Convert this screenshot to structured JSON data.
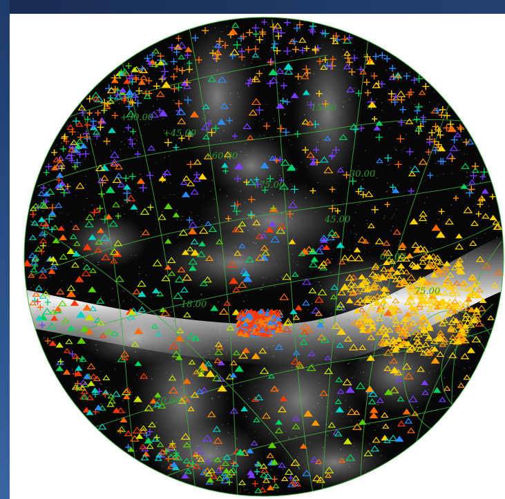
{
  "viewer": {
    "grid_labels": [
      "+30.00",
      "+45.00",
      "+60.00",
      "+75.00",
      "15.00",
      "30.00",
      "45.00",
      "60.00",
      "75.00",
      "18.00",
      "20.00"
    ]
  },
  "colors": {
    "frame": "#1b2f57",
    "background": "#ffffff",
    "grid": "#3fae3f",
    "markers": [
      "#ff6a00",
      "#ff9a00",
      "#ffd000",
      "#c8e000",
      "#5ad000",
      "#00d060",
      "#00d0c0",
      "#2b8cff",
      "#7a3cff",
      "#ff3a00"
    ]
  },
  "markers": {
    "types": [
      "cross",
      "triangle"
    ]
  }
}
